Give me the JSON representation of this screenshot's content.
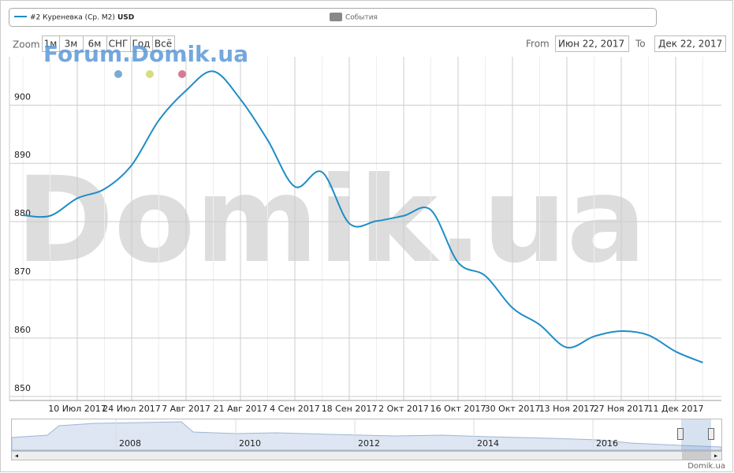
{
  "chart_data": {
    "type": "line",
    "legend": {
      "series_unit": "USD",
      "events": "События"
    },
    "ui": {
      "zoom": "Zoom",
      "buttons": [
        "1м",
        "3м",
        "6м",
        "СНГ",
        "Год",
        "Всё"
      ],
      "from_label": "From",
      "from_value": "Июн 22, 2017",
      "to_label": "To",
      "to_value": "Дек 22, 2017",
      "forum": "Forum.Domik.ua",
      "watermark": "Domik.ua",
      "credit": "Domik.ua",
      "navigator_years": [
        "2008",
        "2010",
        "2012",
        "2014",
        "2016"
      ]
    },
    "categories": [
      null,
      null,
      "10 Июл 2017",
      null,
      "24 Июл 2017",
      null,
      "7 Авг 2017",
      null,
      "21 Авг 2017",
      null,
      "4 Сен 2017",
      null,
      "18 Сен 2017",
      null,
      "2 Окт 2017",
      null,
      "16 Окт 2017",
      null,
      "30 Окт 2017",
      null,
      "13 Ноя 2017",
      null,
      "27 Ноя 2017",
      null,
      "11 Дек 2017",
      null
    ],
    "series": [
      {
        "name": "#2 Куреневка (Ср. М2)",
        "color": "#1f8dc6",
        "values": [
          881.1,
          881,
          884,
          885.6,
          889.7,
          897.4,
          902.5,
          905.8,
          901,
          894,
          886,
          888.5,
          879.7,
          880.1,
          881,
          882,
          873,
          870.7,
          865.2,
          862.3,
          858.4,
          860.3,
          861.2,
          860.5,
          857.7,
          855.8
        ]
      }
    ],
    "ylim": [
      849.3,
      908.3
    ],
    "yticks": [
      850,
      860,
      870,
      880,
      890,
      900
    ],
    "grid": true
  }
}
